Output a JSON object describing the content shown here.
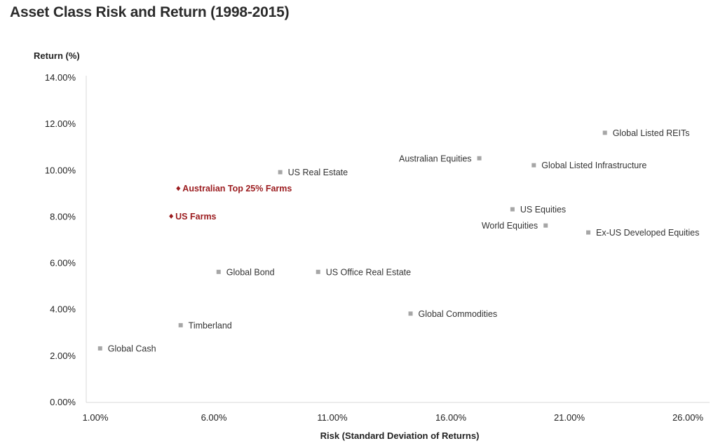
{
  "chart_data": {
    "type": "scatter",
    "title": "Asset Class Risk and Return (1998-2015)",
    "xlabel": "Risk (Standard Deviation of Returns)",
    "ylabel": "Return (%)",
    "xlim": [
      1,
      27
    ],
    "ylim": [
      0,
      14
    ],
    "x_ticks": [
      "1.00%",
      "6.00%",
      "11.00%",
      "16.00%",
      "21.00%",
      "26.00%"
    ],
    "y_ticks": [
      "0.00%",
      "2.00%",
      "4.00%",
      "6.00%",
      "8.00%",
      "10.00%",
      "12.00%",
      "14.00%"
    ],
    "grid": false,
    "colors": {
      "default": "#a6a6a6",
      "highlight": "#9b1b1e"
    },
    "points": [
      {
        "label": "Global Cash",
        "x": 1.2,
        "y": 2.3,
        "highlight": false,
        "label_pos": "right"
      },
      {
        "label": "Timberland",
        "x": 4.6,
        "y": 3.3,
        "highlight": false,
        "label_pos": "right"
      },
      {
        "label": "Global Bond",
        "x": 6.2,
        "y": 5.6,
        "highlight": false,
        "label_pos": "right"
      },
      {
        "label": "US Office Real Estate",
        "x": 10.4,
        "y": 5.6,
        "highlight": false,
        "label_pos": "right"
      },
      {
        "label": "US Farms",
        "x": 4.2,
        "y": 8.0,
        "highlight": true,
        "label_pos": "right"
      },
      {
        "label": "Australian Top 25% Farms",
        "x": 4.5,
        "y": 9.2,
        "highlight": true,
        "label_pos": "right"
      },
      {
        "label": "US Real Estate",
        "x": 8.8,
        "y": 9.9,
        "highlight": false,
        "label_pos": "right"
      },
      {
        "label": "Global Commodities",
        "x": 14.3,
        "y": 3.8,
        "highlight": false,
        "label_pos": "right"
      },
      {
        "label": "Australian Equities",
        "x": 17.2,
        "y": 10.5,
        "highlight": false,
        "label_pos": "left"
      },
      {
        "label": "US Equities",
        "x": 18.6,
        "y": 8.3,
        "highlight": false,
        "label_pos": "right"
      },
      {
        "label": "World Equities",
        "x": 20.0,
        "y": 7.6,
        "highlight": false,
        "label_pos": "left"
      },
      {
        "label": "Global Listed Infrastructure",
        "x": 19.5,
        "y": 10.2,
        "highlight": false,
        "label_pos": "right"
      },
      {
        "label": "Ex-US Developed Equities",
        "x": 21.8,
        "y": 7.3,
        "highlight": false,
        "label_pos": "right"
      },
      {
        "label": "Global Listed REITs",
        "x": 22.5,
        "y": 11.6,
        "highlight": false,
        "label_pos": "right"
      }
    ]
  }
}
